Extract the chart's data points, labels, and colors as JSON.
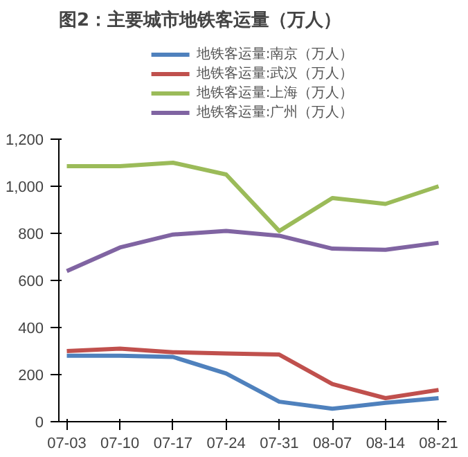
{
  "chart_data": {
    "type": "line",
    "title": "图2：主要城市地铁客运量（万人）",
    "categories": [
      "07-03",
      "07-10",
      "07-17",
      "07-24",
      "07-31",
      "08-07",
      "08-14",
      "08-21"
    ],
    "series": [
      {
        "name": "地铁客运量:南京（万人）",
        "color": "#4f81bd",
        "values": [
          280,
          280,
          275,
          205,
          85,
          55,
          80,
          100
        ]
      },
      {
        "name": "地铁客运量:武汉（万人）",
        "color": "#c0504d",
        "values": [
          300,
          310,
          295,
          290,
          285,
          160,
          100,
          135
        ]
      },
      {
        "name": "地铁客运量:上海（万人）",
        "color": "#9bbb59",
        "values": [
          1085,
          1085,
          1100,
          1050,
          810,
          950,
          925,
          1000
        ]
      },
      {
        "name": "地铁客运量:广州（万人）",
        "color": "#8064a2",
        "values": [
          640,
          740,
          795,
          810,
          790,
          735,
          730,
          760
        ]
      }
    ],
    "ylim": [
      0,
      1200
    ],
    "yticks": [
      {
        "value": 0,
        "label": "0"
      },
      {
        "value": 200,
        "label": "200"
      },
      {
        "value": 400,
        "label": "400"
      },
      {
        "value": 600,
        "label": "600"
      },
      {
        "value": 800,
        "label": "800"
      },
      {
        "value": 1000,
        "label": "1,000"
      },
      {
        "value": 1200,
        "label": "1,200"
      }
    ],
    "grid": false,
    "legend": "top",
    "marker": "none",
    "line_style": "solid"
  }
}
